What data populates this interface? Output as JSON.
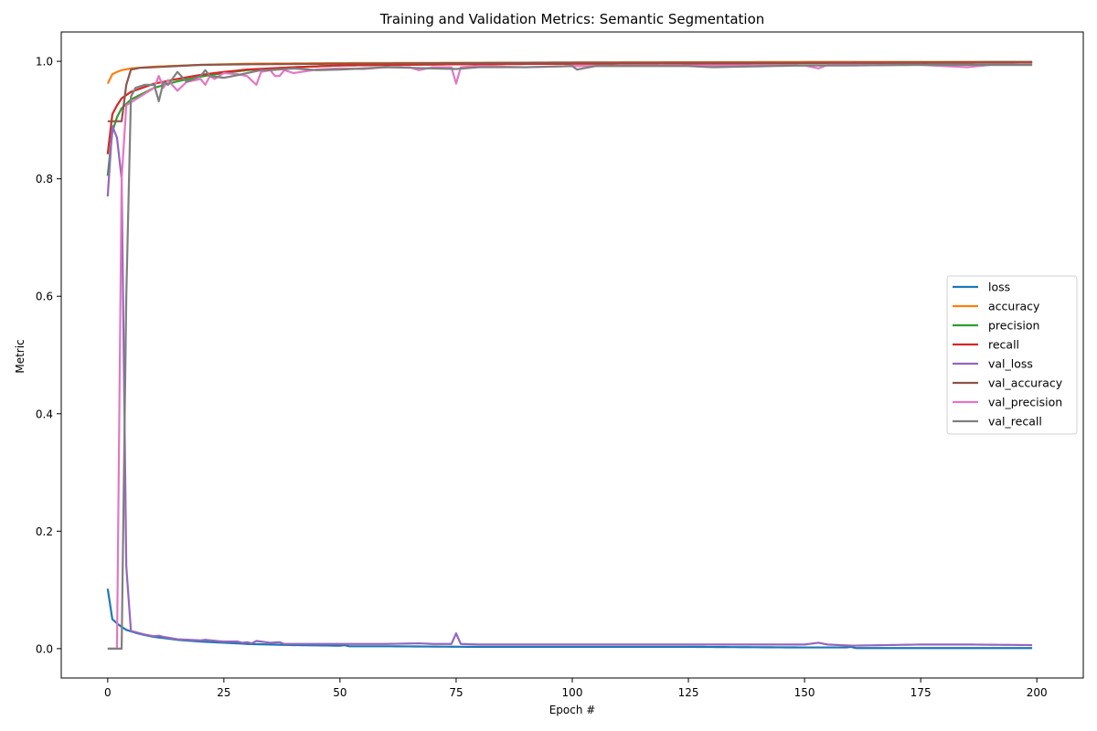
{
  "chart_data": {
    "type": "line",
    "title": "Training and Validation Metrics: Semantic Segmentation",
    "xlabel": "Epoch #",
    "ylabel": "Metric",
    "xlim": [
      -10,
      210
    ],
    "ylim": [
      -0.05,
      1.05
    ],
    "xticks": [
      0,
      25,
      50,
      75,
      100,
      125,
      150,
      175,
      200
    ],
    "yticks": [
      0.0,
      0.2,
      0.4,
      0.6,
      0.8,
      1.0
    ],
    "grid": false,
    "legend_position": "center-right",
    "series": [
      {
        "name": "loss",
        "color": "#1f77b4",
        "keypoints": [
          [
            0,
            0.102
          ],
          [
            1,
            0.05
          ],
          [
            2,
            0.043
          ],
          [
            3,
            0.037
          ],
          [
            4,
            0.032
          ],
          [
            6,
            0.027
          ],
          [
            8,
            0.023
          ],
          [
            10,
            0.02
          ],
          [
            15,
            0.015
          ],
          [
            20,
            0.012
          ],
          [
            25,
            0.01
          ],
          [
            30,
            0.008
          ],
          [
            40,
            0.006
          ],
          [
            50,
            0.005
          ],
          [
            51,
            0.006
          ],
          [
            52,
            0.004
          ],
          [
            60,
            0.004
          ],
          [
            80,
            0.003
          ],
          [
            100,
            0.003
          ],
          [
            125,
            0.003
          ],
          [
            150,
            0.002
          ],
          [
            159,
            0.002
          ],
          [
            160,
            0.003
          ],
          [
            161,
            0.001
          ],
          [
            199,
            0.001
          ]
        ]
      },
      {
        "name": "accuracy",
        "color": "#ff7f0e",
        "keypoints": [
          [
            0,
            0.962
          ],
          [
            1,
            0.978
          ],
          [
            2,
            0.982
          ],
          [
            3,
            0.985
          ],
          [
            5,
            0.988
          ],
          [
            10,
            0.991
          ],
          [
            20,
            0.994
          ],
          [
            30,
            0.996
          ],
          [
            50,
            0.997
          ],
          [
            100,
            0.998
          ],
          [
            150,
            0.999
          ],
          [
            199,
            0.999
          ]
        ]
      },
      {
        "name": "precision",
        "color": "#2ca02c",
        "keypoints": [
          [
            0,
            0.805
          ],
          [
            1,
            0.88
          ],
          [
            2,
            0.905
          ],
          [
            3,
            0.92
          ],
          [
            5,
            0.935
          ],
          [
            10,
            0.955
          ],
          [
            15,
            0.966
          ],
          [
            20,
            0.974
          ],
          [
            25,
            0.98
          ],
          [
            30,
            0.985
          ],
          [
            40,
            0.99
          ],
          [
            50,
            0.993
          ],
          [
            75,
            0.995
          ],
          [
            100,
            0.996
          ],
          [
            150,
            0.997
          ],
          [
            199,
            0.998
          ]
        ]
      },
      {
        "name": "recall",
        "color": "#d62728",
        "keypoints": [
          [
            0,
            0.842
          ],
          [
            1,
            0.91
          ],
          [
            2,
            0.925
          ],
          [
            3,
            0.937
          ],
          [
            5,
            0.948
          ],
          [
            10,
            0.962
          ],
          [
            15,
            0.97
          ],
          [
            20,
            0.977
          ],
          [
            25,
            0.982
          ],
          [
            30,
            0.986
          ],
          [
            40,
            0.99
          ],
          [
            50,
            0.993
          ],
          [
            75,
            0.995
          ],
          [
            100,
            0.996
          ],
          [
            150,
            0.997
          ],
          [
            199,
            0.998
          ]
        ]
      },
      {
        "name": "val_loss",
        "color": "#9467bd",
        "keypoints": [
          [
            0,
            0.77
          ],
          [
            1,
            0.89
          ],
          [
            2,
            0.87
          ],
          [
            3,
            0.8
          ],
          [
            4,
            0.14
          ],
          [
            5,
            0.03
          ],
          [
            8,
            0.024
          ],
          [
            10,
            0.021
          ],
          [
            11,
            0.022
          ],
          [
            12,
            0.02
          ],
          [
            15,
            0.016
          ],
          [
            20,
            0.014
          ],
          [
            21,
            0.015
          ],
          [
            25,
            0.012
          ],
          [
            28,
            0.012
          ],
          [
            29,
            0.01
          ],
          [
            30,
            0.011
          ],
          [
            31,
            0.009
          ],
          [
            32,
            0.013
          ],
          [
            35,
            0.01
          ],
          [
            37,
            0.011
          ],
          [
            38,
            0.008
          ],
          [
            45,
            0.008
          ],
          [
            50,
            0.008
          ],
          [
            60,
            0.008
          ],
          [
            67,
            0.009
          ],
          [
            70,
            0.008
          ],
          [
            74,
            0.008
          ],
          [
            75,
            0.026
          ],
          [
            76,
            0.008
          ],
          [
            80,
            0.007
          ],
          [
            100,
            0.007
          ],
          [
            125,
            0.007
          ],
          [
            150,
            0.007
          ],
          [
            153,
            0.01
          ],
          [
            155,
            0.007
          ],
          [
            160,
            0.005
          ],
          [
            175,
            0.007
          ],
          [
            185,
            0.007
          ],
          [
            199,
            0.006
          ]
        ]
      },
      {
        "name": "val_accuracy",
        "color": "#8c564b",
        "keypoints": [
          [
            0,
            0.898
          ],
          [
            1,
            0.898
          ],
          [
            2,
            0.898
          ],
          [
            3,
            0.898
          ],
          [
            4,
            0.96
          ],
          [
            5,
            0.986
          ],
          [
            7,
            0.989
          ],
          [
            10,
            0.99
          ],
          [
            15,
            0.992
          ],
          [
            20,
            0.994
          ],
          [
            30,
            0.995
          ],
          [
            50,
            0.996
          ],
          [
            75,
            0.997
          ],
          [
            100,
            0.998
          ],
          [
            150,
            0.998
          ],
          [
            199,
            0.999
          ]
        ]
      },
      {
        "name": "val_precision",
        "color": "#e377c2",
        "keypoints": [
          [
            0,
            0.0
          ],
          [
            1,
            0.0
          ],
          [
            2,
            0.0
          ],
          [
            3,
            0.8
          ],
          [
            4,
            0.925
          ],
          [
            5,
            0.93
          ],
          [
            6,
            0.935
          ],
          [
            8,
            0.945
          ],
          [
            10,
            0.955
          ],
          [
            11,
            0.975
          ],
          [
            12,
            0.955
          ],
          [
            13,
            0.968
          ],
          [
            15,
            0.95
          ],
          [
            17,
            0.965
          ],
          [
            20,
            0.97
          ],
          [
            21,
            0.96
          ],
          [
            22,
            0.975
          ],
          [
            23,
            0.97
          ],
          [
            25,
            0.98
          ],
          [
            28,
            0.978
          ],
          [
            30,
            0.975
          ],
          [
            32,
            0.96
          ],
          [
            33,
            0.982
          ],
          [
            35,
            0.985
          ],
          [
            36,
            0.975
          ],
          [
            37,
            0.975
          ],
          [
            38,
            0.985
          ],
          [
            40,
            0.98
          ],
          [
            45,
            0.986
          ],
          [
            50,
            0.988
          ],
          [
            55,
            0.987
          ],
          [
            60,
            0.99
          ],
          [
            65,
            0.99
          ],
          [
            67,
            0.985
          ],
          [
            70,
            0.99
          ],
          [
            74,
            0.99
          ],
          [
            75,
            0.962
          ],
          [
            76,
            0.99
          ],
          [
            80,
            0.992
          ],
          [
            90,
            0.99
          ],
          [
            100,
            0.992
          ],
          [
            125,
            0.993
          ],
          [
            150,
            0.993
          ],
          [
            153,
            0.988
          ],
          [
            155,
            0.994
          ],
          [
            175,
            0.994
          ],
          [
            185,
            0.99
          ],
          [
            190,
            0.994
          ],
          [
            199,
            0.994
          ]
        ]
      },
      {
        "name": "val_recall",
        "color": "#7f7f7f",
        "keypoints": [
          [
            0,
            0.0
          ],
          [
            1,
            0.0
          ],
          [
            2,
            0.0
          ],
          [
            3,
            0.0
          ],
          [
            4,
            0.6
          ],
          [
            5,
            0.94
          ],
          [
            6,
            0.955
          ],
          [
            8,
            0.96
          ],
          [
            10,
            0.96
          ],
          [
            11,
            0.932
          ],
          [
            12,
            0.965
          ],
          [
            13,
            0.96
          ],
          [
            15,
            0.982
          ],
          [
            17,
            0.965
          ],
          [
            20,
            0.975
          ],
          [
            21,
            0.985
          ],
          [
            22,
            0.975
          ],
          [
            25,
            0.972
          ],
          [
            27,
            0.975
          ],
          [
            30,
            0.98
          ],
          [
            33,
            0.985
          ],
          [
            35,
            0.985
          ],
          [
            40,
            0.988
          ],
          [
            45,
            0.985
          ],
          [
            50,
            0.986
          ],
          [
            55,
            0.988
          ],
          [
            60,
            0.99
          ],
          [
            70,
            0.988
          ],
          [
            75,
            0.987
          ],
          [
            80,
            0.99
          ],
          [
            90,
            0.99
          ],
          [
            100,
            0.992
          ],
          [
            101,
            0.986
          ],
          [
            105,
            0.992
          ],
          [
            125,
            0.992
          ],
          [
            130,
            0.99
          ],
          [
            150,
            0.993
          ],
          [
            160,
            0.993
          ],
          [
            175,
            0.994
          ],
          [
            199,
            0.994
          ]
        ]
      }
    ]
  }
}
